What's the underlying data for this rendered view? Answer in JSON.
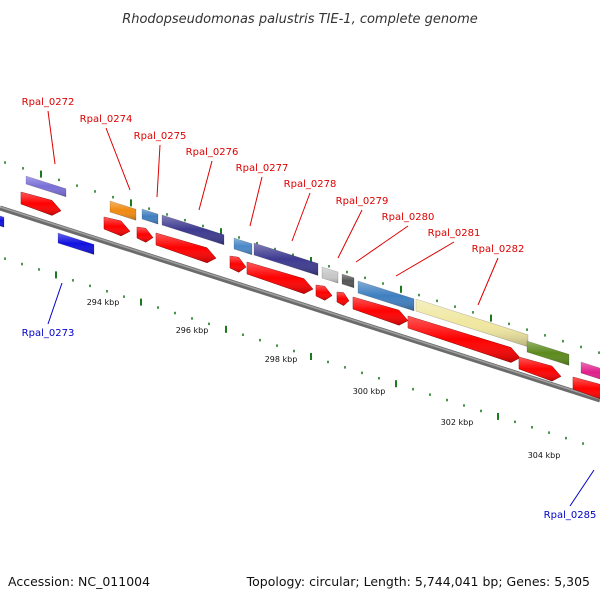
{
  "title": "Rhodopseudomonas palustris TIE-1, complete genome",
  "footer": {
    "accession": "Accession: NC_011004",
    "topology": "Topology: circular; Length: 5,744,041 bp; Genes: 5,305"
  },
  "colors": {
    "forward_label": "#dd0000",
    "reverse_label": "#0000cc",
    "backbone": "#808080",
    "tick": "#1b7a1b",
    "cds": "#ff0000"
  },
  "gene_labels_forward": [
    "Rpal_0272",
    "Rpal_0274",
    "Rpal_0275",
    "Rpal_0276",
    "Rpal_0277",
    "Rpal_0278",
    "Rpal_0279",
    "Rpal_0280",
    "Rpal_0281",
    "Rpal_0282"
  ],
  "gene_labels_reverse": [
    "Rpal_0273",
    "Rpal_0285"
  ],
  "kbp_labels": [
    "294 kbp",
    "296 kbp",
    "298 kbp",
    "300 kbp",
    "302 kbp",
    "304 kbp"
  ]
}
